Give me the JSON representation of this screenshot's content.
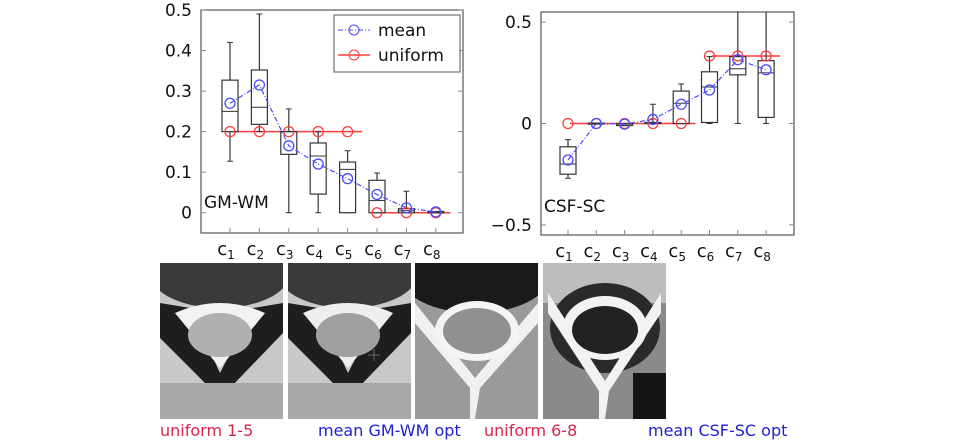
{
  "colors": {
    "mean": "#4a4aff",
    "uniform": "#ff3b3b",
    "box": "#222222",
    "caption_red": "#d8264a",
    "caption_blue": "#2020d0"
  },
  "legend": {
    "mean": "mean",
    "uniform": "uniform"
  },
  "chart_data": [
    {
      "type": "box",
      "title": "GM-WM",
      "categories": [
        "c",
        "c",
        "c",
        "c",
        "c",
        "c",
        "c",
        "c"
      ],
      "subscripts": [
        "1",
        "2",
        "3",
        "4",
        "5",
        "6",
        "7",
        "8"
      ],
      "ylim": [
        -0.05,
        0.5
      ],
      "yticks": [
        0,
        0.1,
        0.2,
        0.3,
        0.4,
        0.5
      ],
      "ytick_labels": [
        "0",
        "0.1",
        "0.2",
        "0.3",
        "0.4",
        "0.5"
      ],
      "legend_position": "top-right",
      "boxes": [
        {
          "wlo": 0.127,
          "q1": 0.2,
          "med": 0.25,
          "q3": 0.327,
          "whi": 0.42
        },
        {
          "wlo": 0.2,
          "q1": 0.218,
          "med": 0.26,
          "q3": 0.352,
          "whi": 0.49
        },
        {
          "wlo": 0,
          "q1": 0.144,
          "med": 0.2,
          "q3": 0.2,
          "whi": 0.256
        },
        {
          "wlo": 0,
          "q1": 0.046,
          "med": 0.14,
          "q3": 0.172,
          "whi": 0.2
        },
        {
          "wlo": 0,
          "q1": 0,
          "med": 0.107,
          "q3": 0.125,
          "whi": 0.153
        },
        {
          "wlo": 0,
          "q1": 0,
          "med": 0.03,
          "q3": 0.08,
          "whi": 0.098
        },
        {
          "wlo": 0,
          "q1": 0,
          "med": 0.005,
          "q3": 0.01,
          "whi": 0.053
        },
        {
          "wlo": 0,
          "q1": 0,
          "med": 0.001,
          "q3": 0.003,
          "whi": 0.003
        }
      ],
      "mean": [
        0.27,
        0.315,
        0.165,
        0.12,
        0.084,
        0.045,
        0.012,
        0.002
      ],
      "uniform": [
        0.2,
        0.2,
        0.2,
        0.2,
        0.2,
        0,
        0,
        0
      ],
      "uniform_groups": [
        [
          1,
          5
        ],
        [
          6,
          8
        ]
      ]
    },
    {
      "type": "box",
      "title": "CSF-SC",
      "categories": [
        "c",
        "c",
        "c",
        "c",
        "c",
        "c",
        "c",
        "c"
      ],
      "subscripts": [
        "1",
        "2",
        "3",
        "4",
        "5",
        "6",
        "7",
        "8"
      ],
      "ylim": [
        -0.55,
        0.55
      ],
      "yticks": [
        -0.5,
        0,
        0.5
      ],
      "ytick_labels": [
        "−0.5",
        "0",
        "0.5"
      ],
      "boxes": [
        {
          "wlo": -0.27,
          "q1": -0.25,
          "med": -0.2,
          "q3": -0.115,
          "whi": -0.08
        },
        {
          "wlo": 0,
          "q1": -0.002,
          "med": 0,
          "q3": 0.002,
          "whi": 0
        },
        {
          "wlo": -0.01,
          "q1": -0.01,
          "med": -0.003,
          "q3": 0,
          "whi": 0
        },
        {
          "wlo": 0,
          "q1": 0,
          "med": 0.003,
          "q3": 0.005,
          "whi": 0.095
        },
        {
          "wlo": 0,
          "q1": 0,
          "med": 0.1,
          "q3": 0.16,
          "whi": 0.195
        },
        {
          "wlo": 0,
          "q1": 0.005,
          "med": 0.18,
          "q3": 0.255,
          "whi": 0.33
        },
        {
          "wlo": 0,
          "q1": 0.24,
          "med": 0.27,
          "q3": 0.33,
          "whi": 0.55
        },
        {
          "wlo": 0,
          "q1": 0.03,
          "med": 0.25,
          "q3": 0.31,
          "whi": 0.55
        }
      ],
      "mean": [
        -0.18,
        0,
        -0.003,
        0.02,
        0.095,
        0.165,
        0.315,
        0.265
      ],
      "uniform": [
        0,
        0,
        0,
        0,
        0,
        0.333,
        0.333,
        0.333
      ],
      "uniform_groups": [
        [
          1,
          5
        ],
        [
          6,
          8
        ]
      ]
    }
  ],
  "captions": [
    "uniform 1-5",
    "mean GM-WM opt",
    "uniform 6-8",
    "mean CSF-SC opt"
  ]
}
